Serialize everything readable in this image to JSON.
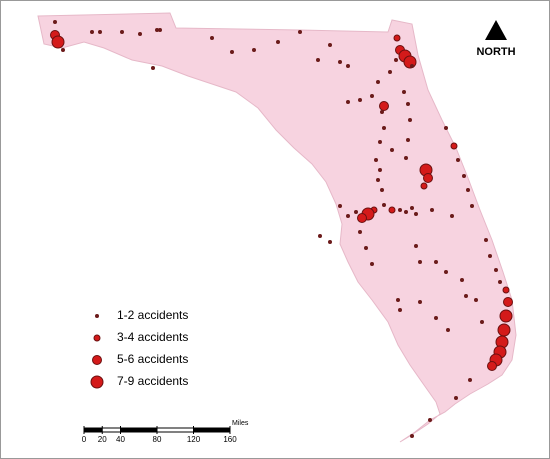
{
  "legend": {
    "items": [
      {
        "label": "1-2 accidents"
      },
      {
        "label": "3-4 accidents"
      },
      {
        "label": "5-6 accidents"
      },
      {
        "label": "7-9 accidents"
      }
    ]
  },
  "scale_bar": {
    "unit": "Miles",
    "ticks": [
      0,
      20,
      40,
      80,
      120,
      160
    ]
  },
  "north_arrow": {
    "label": "NORTH"
  }
}
